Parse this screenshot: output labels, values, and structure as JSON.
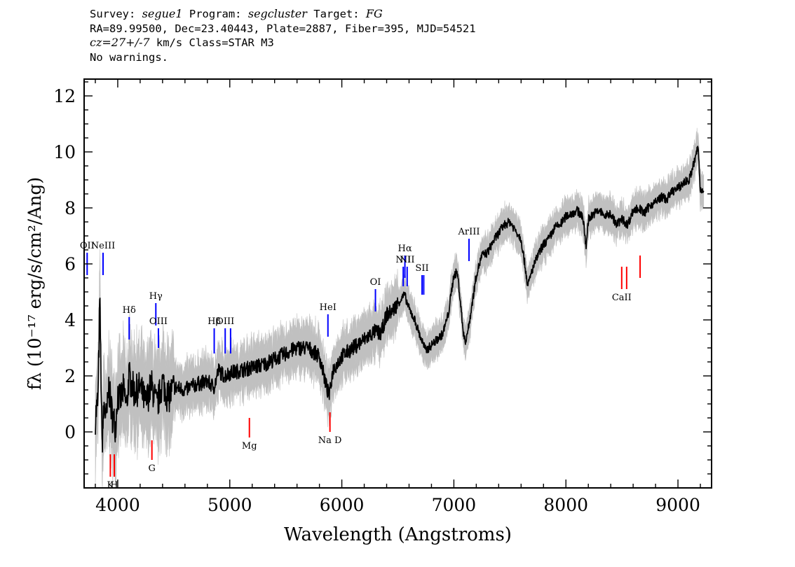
{
  "header": {
    "survey_label": "Survey: ",
    "survey_value": "segue1",
    "program_label": " Program: ",
    "program_value": "segcluster",
    "target_label": " Target: ",
    "target_value": "FG",
    "line2": "RA=89.99500, Dec=23.40443, Plate=2887, Fiber=395, MJD=54521",
    "cz_value": "cz=27+/-7",
    "cz_rest": " km/s Class=STAR M3",
    "line4": "No warnings."
  },
  "colors": {
    "flux": "#000000",
    "error_band": "#c0c0c0",
    "emission_lines": "#0000ff",
    "absorption_lines": "#ff0000"
  },
  "chart_data": {
    "type": "line",
    "xlabel": "Wavelength (Angstroms)",
    "ylabel": "fλ (10⁻¹⁷ erg/s/cm²/Ang)",
    "xlim": [
      3700,
      9300
    ],
    "ylim": [
      -2,
      12.6
    ],
    "xticks": [
      4000,
      5000,
      6000,
      7000,
      8000,
      9000
    ],
    "yticks": [
      0,
      2,
      4,
      6,
      8,
      10,
      12
    ],
    "grid": false,
    "series": [
      {
        "x": [
          3800,
          3825,
          3840,
          3860,
          3880,
          3900,
          3920,
          3950,
          3980,
          4000,
          4020,
          4050,
          4080,
          4100,
          4150,
          4200,
          4250,
          4300,
          4350,
          4400,
          4450,
          4500,
          4600,
          4700,
          4800,
          4860,
          4900,
          4950,
          5000,
          5100,
          5200,
          5300,
          5400,
          5500,
          5600,
          5700,
          5800,
          5870,
          5890,
          5920,
          6000,
          6100,
          6200,
          6300,
          6350,
          6400,
          6450,
          6500,
          6560,
          6600,
          6650,
          6700,
          6750,
          6800,
          6850,
          6900,
          6950,
          7000,
          7030,
          7050,
          7080,
          7100,
          7130,
          7160,
          7200,
          7250,
          7300,
          7350,
          7400,
          7450,
          7500,
          7550,
          7600,
          7640,
          7660,
          7700,
          7750,
          7800,
          7850,
          7900,
          7950,
          8000,
          8050,
          8100,
          8150,
          8180,
          8200,
          8250,
          8300,
          8350,
          8400,
          8450,
          8500,
          8550,
          8600,
          8650,
          8700,
          8750,
          8800,
          8850,
          8900,
          8950,
          9000,
          9050,
          9100,
          9150,
          9180,
          9200,
          9230
        ],
        "y": [
          0.5,
          1.2,
          4.8,
          -0.4,
          1.0,
          0.4,
          1.6,
          0.6,
          0.2,
          1.4,
          1.1,
          1.5,
          0.9,
          2.0,
          1.4,
          1.6,
          1.0,
          1.7,
          0.9,
          1.8,
          1.2,
          1.6,
          1.5,
          1.7,
          1.8,
          1.6,
          2.2,
          2.0,
          2.1,
          2.2,
          2.3,
          2.4,
          2.6,
          2.8,
          3.0,
          3.0,
          2.7,
          1.5,
          1.3,
          2.2,
          2.7,
          3.0,
          3.3,
          3.6,
          3.5,
          4.2,
          4.3,
          4.6,
          4.9,
          4.4,
          4.0,
          3.4,
          2.9,
          3.1,
          3.3,
          3.5,
          4.2,
          5.6,
          5.7,
          5.0,
          3.7,
          3.2,
          3.7,
          4.5,
          5.6,
          6.3,
          6.4,
          6.8,
          7.1,
          7.4,
          7.5,
          7.2,
          6.9,
          5.8,
          5.2,
          5.8,
          6.3,
          6.7,
          6.9,
          7.3,
          7.4,
          7.7,
          7.8,
          7.9,
          7.7,
          6.6,
          7.6,
          7.8,
          7.9,
          7.7,
          7.8,
          7.4,
          7.6,
          7.4,
          7.9,
          8.0,
          7.8,
          8.1,
          8.2,
          8.4,
          8.3,
          8.6,
          8.7,
          8.9,
          9.0,
          9.7,
          10.2,
          8.6,
          8.7
        ]
      }
    ],
    "line_labels": [
      {
        "text": "OII",
        "x": 3727,
        "y_top": 6.4,
        "y_bottom": 5.6,
        "kind": "emission"
      },
      {
        "text": "NeIII",
        "x": 3869,
        "y_top": 6.4,
        "y_bottom": 5.6,
        "kind": "emission"
      },
      {
        "text": "Hδ",
        "x": 4102,
        "y_top": 4.1,
        "y_bottom": 3.3,
        "kind": "emission"
      },
      {
        "text": "Hγ",
        "x": 4340,
        "y_top": 4.6,
        "y_bottom": 3.8,
        "kind": "emission"
      },
      {
        "text": "OIII",
        "x": 4363,
        "y_top": 3.7,
        "y_bottom": 3.0,
        "kind": "emission"
      },
      {
        "text": "Hβ",
        "x": 4861,
        "y_top": 3.7,
        "y_bottom": 2.8,
        "kind": "emission"
      },
      {
        "text": "OIII",
        "x": 4959,
        "y_top": 3.7,
        "y_bottom": 2.8,
        "kind": "emission"
      },
      {
        "text": "",
        "x": 5007,
        "y_top": 3.7,
        "y_bottom": 2.8,
        "kind": "emission"
      },
      {
        "text": "HeI",
        "x": 5876,
        "y_top": 4.2,
        "y_bottom": 3.4,
        "kind": "emission"
      },
      {
        "text": "OI",
        "x": 6300,
        "y_top": 5.1,
        "y_bottom": 4.3,
        "kind": "emission"
      },
      {
        "text": "NII",
        "x": 6548,
        "y_top": 5.9,
        "y_bottom": 5.2,
        "kind": "emission"
      },
      {
        "text": "Hα",
        "x": 6563,
        "y_top": 6.3,
        "y_bottom": 5.5,
        "kind": "emission"
      },
      {
        "text": "NII",
        "x": 6583,
        "y_top": 5.9,
        "y_bottom": 5.2,
        "kind": "emission"
      },
      {
        "text": "SII",
        "x": 6716,
        "y_top": 5.6,
        "y_bottom": 4.9,
        "kind": "emission"
      },
      {
        "text": "",
        "x": 6731,
        "y_top": 5.6,
        "y_bottom": 4.9,
        "kind": "emission"
      },
      {
        "text": "ArIII",
        "x": 7135,
        "y_top": 6.9,
        "y_bottom": 6.1,
        "kind": "emission"
      },
      {
        "text": "K",
        "x": 3934,
        "y_top": -0.8,
        "y_bottom": -1.6,
        "kind": "absorption"
      },
      {
        "text": "H",
        "x": 3969,
        "y_top": -0.8,
        "y_bottom": -1.6,
        "kind": "absorption"
      },
      {
        "text": "G",
        "x": 4305,
        "y_top": -0.3,
        "y_bottom": -1.0,
        "kind": "absorption"
      },
      {
        "text": "Mg",
        "x": 5175,
        "y_top": 0.5,
        "y_bottom": -0.2,
        "kind": "absorption"
      },
      {
        "text": "Na D",
        "x": 5894,
        "y_top": 0.7,
        "y_bottom": 0.0,
        "kind": "absorption"
      },
      {
        "text": "CaII",
        "x": 8498,
        "y_top": 5.9,
        "y_bottom": 5.1,
        "kind": "absorption"
      },
      {
        "text": "",
        "x": 8542,
        "y_top": 5.9,
        "y_bottom": 5.1,
        "kind": "absorption"
      },
      {
        "text": "",
        "x": 8662,
        "y_top": 6.3,
        "y_bottom": 5.5,
        "kind": "absorption"
      }
    ]
  }
}
